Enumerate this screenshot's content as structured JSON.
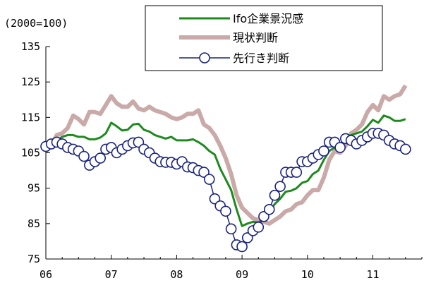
{
  "chart_data": {
    "type": "line",
    "unit_label": "(2000=100)",
    "ylim": [
      75,
      135
    ],
    "yticks": [
      75,
      85,
      95,
      105,
      115,
      125,
      135
    ],
    "xlim": [
      2006.0,
      2011.75
    ],
    "xticks": [
      {
        "value": 2006,
        "label": "06"
      },
      {
        "value": 2007,
        "label": "07"
      },
      {
        "value": 2008,
        "label": "08"
      },
      {
        "value": 2009,
        "label": "09"
      },
      {
        "value": 2010,
        "label": "10"
      },
      {
        "value": 2011,
        "label": "11"
      }
    ],
    "legend_position": "top-right",
    "grid": false,
    "series": [
      {
        "name": "Ifo企業景況感",
        "color": "#1e8a1e",
        "style": "solid",
        "points": [
          [
            2006.0,
            106.5
          ],
          [
            2006.083,
            107.5
          ],
          [
            2006.167,
            108.5
          ],
          [
            2006.25,
            109.5
          ],
          [
            2006.333,
            110.0
          ],
          [
            2006.417,
            110.0
          ],
          [
            2006.5,
            109.5
          ],
          [
            2006.583,
            109.5
          ],
          [
            2006.667,
            108.8
          ],
          [
            2006.75,
            108.8
          ],
          [
            2006.833,
            109.3
          ],
          [
            2006.917,
            110.5
          ],
          [
            2007.0,
            113.5
          ],
          [
            2007.083,
            112.5
          ],
          [
            2007.167,
            111.3
          ],
          [
            2007.25,
            111.5
          ],
          [
            2007.333,
            113.0
          ],
          [
            2007.417,
            113.2
          ],
          [
            2007.5,
            111.5
          ],
          [
            2007.583,
            111.0
          ],
          [
            2007.667,
            110.0
          ],
          [
            2007.75,
            109.5
          ],
          [
            2007.833,
            109.0
          ],
          [
            2007.917,
            109.5
          ],
          [
            2008.0,
            108.5
          ],
          [
            2008.083,
            108.5
          ],
          [
            2008.167,
            108.5
          ],
          [
            2008.25,
            108.8
          ],
          [
            2008.333,
            108.0
          ],
          [
            2008.417,
            107.0
          ],
          [
            2008.5,
            105.5
          ],
          [
            2008.583,
            104.5
          ],
          [
            2008.667,
            100.5
          ],
          [
            2008.75,
            97.5
          ],
          [
            2008.833,
            94.5
          ],
          [
            2008.917,
            89.0
          ],
          [
            2009.0,
            84.3
          ],
          [
            2009.083,
            85.0
          ],
          [
            2009.167,
            85.5
          ],
          [
            2009.25,
            85.3
          ],
          [
            2009.333,
            86.5
          ],
          [
            2009.417,
            88.5
          ],
          [
            2009.5,
            90.5
          ],
          [
            2009.583,
            92.0
          ],
          [
            2009.667,
            94.0
          ],
          [
            2009.75,
            94.3
          ],
          [
            2009.833,
            95.0
          ],
          [
            2009.917,
            96.5
          ],
          [
            2010.0,
            97.0
          ],
          [
            2010.083,
            99.0
          ],
          [
            2010.167,
            100.0
          ],
          [
            2010.25,
            103.0
          ],
          [
            2010.333,
            105.5
          ],
          [
            2010.417,
            106.5
          ],
          [
            2010.5,
            107.0
          ],
          [
            2010.583,
            109.5
          ],
          [
            2010.667,
            110.0
          ],
          [
            2010.75,
            110.5
          ],
          [
            2010.833,
            111.0
          ],
          [
            2010.917,
            112.5
          ],
          [
            2011.0,
            114.3
          ],
          [
            2011.083,
            113.5
          ],
          [
            2011.167,
            115.5
          ],
          [
            2011.25,
            115.0
          ],
          [
            2011.333,
            114.0
          ],
          [
            2011.417,
            114.0
          ],
          [
            2011.5,
            114.5
          ]
        ]
      },
      {
        "name": "現状判断",
        "color": "#c9aaa8",
        "style": "thick",
        "points": [
          [
            2006.0,
            105.5
          ],
          [
            2006.083,
            107.0
          ],
          [
            2006.167,
            110.0
          ],
          [
            2006.25,
            110.5
          ],
          [
            2006.333,
            112.0
          ],
          [
            2006.417,
            115.5
          ],
          [
            2006.5,
            114.5
          ],
          [
            2006.583,
            113.0
          ],
          [
            2006.667,
            116.5
          ],
          [
            2006.75,
            116.5
          ],
          [
            2006.833,
            116.0
          ],
          [
            2006.917,
            118.5
          ],
          [
            2007.0,
            121.0
          ],
          [
            2007.083,
            119.0
          ],
          [
            2007.167,
            118.0
          ],
          [
            2007.25,
            118.0
          ],
          [
            2007.333,
            119.5
          ],
          [
            2007.417,
            117.5
          ],
          [
            2007.5,
            117.0
          ],
          [
            2007.583,
            118.0
          ],
          [
            2007.667,
            117.0
          ],
          [
            2007.75,
            116.5
          ],
          [
            2007.833,
            116.0
          ],
          [
            2007.917,
            115.0
          ],
          [
            2008.0,
            114.5
          ],
          [
            2008.083,
            115.0
          ],
          [
            2008.167,
            116.0
          ],
          [
            2008.25,
            116.0
          ],
          [
            2008.333,
            117.0
          ],
          [
            2008.417,
            113.0
          ],
          [
            2008.5,
            112.0
          ],
          [
            2008.583,
            110.0
          ],
          [
            2008.667,
            107.0
          ],
          [
            2008.75,
            103.5
          ],
          [
            2008.833,
            99.0
          ],
          [
            2008.917,
            93.0
          ],
          [
            2009.0,
            89.5
          ],
          [
            2009.083,
            88.0
          ],
          [
            2009.167,
            86.5
          ],
          [
            2009.25,
            86.0
          ],
          [
            2009.333,
            85.5
          ],
          [
            2009.417,
            85.0
          ],
          [
            2009.5,
            86.0
          ],
          [
            2009.583,
            87.0
          ],
          [
            2009.667,
            88.5
          ],
          [
            2009.75,
            89.0
          ],
          [
            2009.833,
            90.5
          ],
          [
            2009.917,
            91.0
          ],
          [
            2010.0,
            93.0
          ],
          [
            2010.083,
            94.5
          ],
          [
            2010.167,
            94.5
          ],
          [
            2010.25,
            98.0
          ],
          [
            2010.333,
            103.0
          ],
          [
            2010.417,
            105.5
          ],
          [
            2010.5,
            105.0
          ],
          [
            2010.583,
            107.0
          ],
          [
            2010.667,
            110.5
          ],
          [
            2010.75,
            111.5
          ],
          [
            2010.833,
            113.0
          ],
          [
            2010.917,
            116.5
          ],
          [
            2011.0,
            118.5
          ],
          [
            2011.083,
            117.0
          ],
          [
            2011.167,
            121.0
          ],
          [
            2011.25,
            120.0
          ],
          [
            2011.333,
            121.0
          ],
          [
            2011.417,
            121.5
          ],
          [
            2011.5,
            124.0
          ]
        ]
      },
      {
        "name": "先行き判断",
        "color": "#1a237e",
        "marker_fill": "#ffffff",
        "style": "markers",
        "points": [
          [
            2006.0,
            106.8
          ],
          [
            2006.083,
            107.5
          ],
          [
            2006.167,
            108.0
          ],
          [
            2006.25,
            107.5
          ],
          [
            2006.333,
            106.5
          ],
          [
            2006.417,
            106.0
          ],
          [
            2006.5,
            105.5
          ],
          [
            2006.583,
            104.0
          ],
          [
            2006.667,
            101.5
          ],
          [
            2006.75,
            102.5
          ],
          [
            2006.833,
            103.5
          ],
          [
            2006.917,
            106.0
          ],
          [
            2007.0,
            106.5
          ],
          [
            2007.083,
            105.0
          ],
          [
            2007.167,
            106.0
          ],
          [
            2007.25,
            107.0
          ],
          [
            2007.333,
            107.8
          ],
          [
            2007.417,
            108.0
          ],
          [
            2007.5,
            106.0
          ],
          [
            2007.583,
            105.0
          ],
          [
            2007.667,
            103.5
          ],
          [
            2007.75,
            102.5
          ],
          [
            2007.833,
            102.3
          ],
          [
            2007.917,
            102.3
          ],
          [
            2008.0,
            101.8
          ],
          [
            2008.083,
            102.5
          ],
          [
            2008.167,
            101.0
          ],
          [
            2008.25,
            100.8
          ],
          [
            2008.333,
            100.0
          ],
          [
            2008.417,
            99.5
          ],
          [
            2008.5,
            97.5
          ],
          [
            2008.583,
            92.0
          ],
          [
            2008.667,
            90.0
          ],
          [
            2008.75,
            88.5
          ],
          [
            2008.833,
            83.5
          ],
          [
            2008.917,
            79.0
          ],
          [
            2009.0,
            78.5
          ],
          [
            2009.083,
            81.0
          ],
          [
            2009.167,
            83.0
          ],
          [
            2009.25,
            84.0
          ],
          [
            2009.333,
            87.0
          ],
          [
            2009.417,
            89.0
          ],
          [
            2009.5,
            93.0
          ],
          [
            2009.583,
            95.5
          ],
          [
            2009.667,
            99.5
          ],
          [
            2009.75,
            99.5
          ],
          [
            2009.833,
            99.5
          ],
          [
            2009.917,
            102.5
          ],
          [
            2010.0,
            102.5
          ],
          [
            2010.083,
            103.5
          ],
          [
            2010.167,
            104.5
          ],
          [
            2010.25,
            105.5
          ],
          [
            2010.333,
            108.0
          ],
          [
            2010.417,
            108.0
          ],
          [
            2010.5,
            106.5
          ],
          [
            2010.583,
            109.0
          ],
          [
            2010.667,
            108.5
          ],
          [
            2010.75,
            107.5
          ],
          [
            2010.833,
            108.5
          ],
          [
            2010.917,
            109.5
          ],
          [
            2011.0,
            110.5
          ],
          [
            2011.083,
            110.5
          ],
          [
            2011.167,
            110.0
          ],
          [
            2011.25,
            108.5
          ],
          [
            2011.333,
            107.5
          ],
          [
            2011.417,
            107.0
          ],
          [
            2011.5,
            106.0
          ]
        ]
      }
    ]
  }
}
